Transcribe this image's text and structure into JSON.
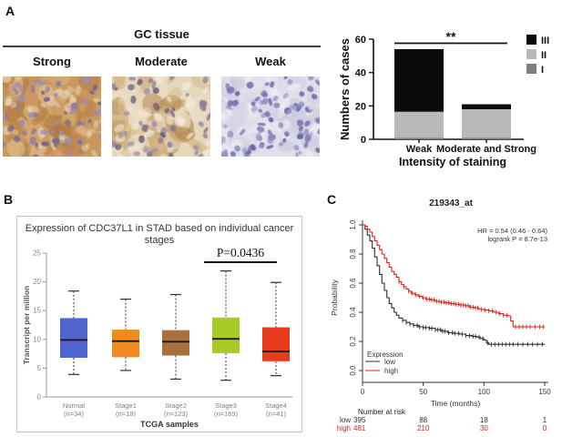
{
  "panel_a": {
    "label": "A",
    "tissue_title": "GC tissue",
    "columns": [
      {
        "label": "Strong",
        "palette": {
          "base": "#c9975f",
          "cyto": [
            "#bc8448",
            "#d8ae77",
            "#b07a42",
            "#e3c492"
          ],
          "nuclei": [
            "#8d7ca4",
            "#77678f",
            "#9d8db3"
          ],
          "light": "#eadbbf",
          "ncount": 60
        }
      },
      {
        "label": "Moderate",
        "palette": {
          "base": "#e5d7ba",
          "cyto": [
            "#d3b98a",
            "#c5a066",
            "#ecdfc8",
            "#b48a52"
          ],
          "nuclei": [
            "#8d7a96",
            "#71607f",
            "#a391aa"
          ],
          "light": "#f4ecdc",
          "ncount": 50
        }
      },
      {
        "label": "Weak",
        "palette": {
          "base": "#e0dee9",
          "cyto": [
            "#d8d6e5",
            "#e9e7f0",
            "#cecbdf"
          ],
          "nuclei": [
            "#8b8bc1",
            "#7676b1",
            "#9f9fd0",
            "#6565a5"
          ],
          "light": "#f1f0f7",
          "ncount": 85
        }
      }
    ]
  },
  "panel_b": {
    "label": "B"
  },
  "panel_c": {
    "label": "C"
  },
  "chart_data": [
    {
      "id": "staining-bar",
      "type": "bar",
      "stacked": true,
      "categories": [
        "Weak",
        "Moderate and Strong"
      ],
      "series": [
        {
          "name": "I",
          "color": "#7f7f7f",
          "values": [
            1,
            1
          ]
        },
        {
          "name": "II",
          "color": "#b9b9b9",
          "values": [
            15.5,
            17
          ]
        },
        {
          "name": "III",
          "color": "#0a0a0a",
          "values": [
            37.5,
            3
          ]
        }
      ],
      "totals": [
        54,
        21
      ],
      "ylabel": "Numbers of cases",
      "xlabel": "Intensity of staining",
      "ylim": [
        0,
        60
      ],
      "yticks": [
        0,
        20,
        40,
        60
      ],
      "legend_order": [
        "III",
        "II",
        "I"
      ],
      "significance": {
        "label": "**"
      }
    },
    {
      "id": "stage-box",
      "type": "box",
      "title": "Expression of CDC37L1 in STAD based on individual cancer stages",
      "title_lines": [
        "Expression of CDC37L1 in STAD based on individual cancer",
        "stages"
      ],
      "xlabel": "TCGA samples",
      "ylabel": "Transcript per million",
      "ylim": [
        0,
        25
      ],
      "yticks": [
        0,
        5,
        10,
        15,
        20,
        25
      ],
      "p_value": "P=0.0436",
      "p_compare": [
        "Stage3",
        "Stage4"
      ],
      "groups": [
        {
          "label": "Normal",
          "n": "(n=34)",
          "color": "#5064cd",
          "low": 3.9,
          "q1": 6.8,
          "median": 9.9,
          "q3": 13.7,
          "high": 18.4
        },
        {
          "label": "Stage1",
          "n": "(n=18)",
          "color": "#ef8b21",
          "low": 4.6,
          "q1": 6.9,
          "median": 9.7,
          "q3": 11.7,
          "high": 17.0
        },
        {
          "label": "Stage2",
          "n": "(n=123)",
          "color": "#a8703d",
          "low": 3.1,
          "q1": 7.2,
          "median": 9.6,
          "q3": 11.6,
          "high": 17.8
        },
        {
          "label": "Stage3",
          "n": "(n=169)",
          "color": "#a9cb27",
          "low": 2.9,
          "q1": 7.6,
          "median": 10.1,
          "q3": 13.8,
          "high": 21.9
        },
        {
          "label": "Stage4",
          "n": "(n=41)",
          "color": "#e73a1e",
          "low": 3.7,
          "q1": 6.2,
          "median": 7.9,
          "q3": 12.1,
          "high": 19.9
        }
      ]
    },
    {
      "id": "km-plot",
      "type": "line",
      "title": "219343_at",
      "xlabel": "Time (months)",
      "ylabel": "Probability",
      "xlim": [
        0,
        150
      ],
      "ylim": [
        0,
        1
      ],
      "xticks": [
        0,
        50,
        100,
        150
      ],
      "yticks": [
        0.0,
        0.2,
        0.4,
        0.6,
        0.8,
        1.0
      ],
      "annotation": [
        "HR = 0.54 (0.46 - 0.64)",
        "logrank P = 8.7e-13"
      ],
      "legend_title": "Expression",
      "series": [
        {
          "name": "low",
          "color": "#2f2f2f",
          "steps": [
            [
              0,
              1.0
            ],
            [
              2,
              0.97
            ],
            [
              4,
              0.93
            ],
            [
              6,
              0.89
            ],
            [
              8,
              0.84
            ],
            [
              10,
              0.78
            ],
            [
              12,
              0.72
            ],
            [
              14,
              0.66
            ],
            [
              16,
              0.6
            ],
            [
              18,
              0.55
            ],
            [
              20,
              0.5
            ],
            [
              22,
              0.46
            ],
            [
              24,
              0.43
            ],
            [
              26,
              0.4
            ],
            [
              28,
              0.38
            ],
            [
              30,
              0.36
            ],
            [
              33,
              0.345
            ],
            [
              36,
              0.33
            ],
            [
              39,
              0.32
            ],
            [
              42,
              0.31
            ],
            [
              46,
              0.3
            ],
            [
              50,
              0.295
            ],
            [
              55,
              0.29
            ],
            [
              60,
              0.28
            ],
            [
              65,
              0.27
            ],
            [
              70,
              0.26
            ],
            [
              75,
              0.255
            ],
            [
              80,
              0.25
            ],
            [
              85,
              0.24
            ],
            [
              90,
              0.235
            ],
            [
              94,
              0.23
            ],
            [
              97,
              0.22
            ],
            [
              100,
              0.21
            ],
            [
              102,
              0.19
            ],
            [
              104,
              0.18
            ],
            [
              150,
              0.18
            ]
          ],
          "censor_times": [
            33,
            36,
            39,
            42,
            45,
            47,
            50,
            52,
            55,
            57,
            60,
            62,
            64,
            66,
            68,
            71,
            74,
            76,
            79,
            82,
            85,
            88,
            91,
            93,
            96,
            99,
            103,
            106,
            109,
            112,
            115,
            118,
            121,
            124,
            128,
            132,
            136,
            140,
            144,
            148
          ]
        },
        {
          "name": "high",
          "color": "#e2231a",
          "steps": [
            [
              0,
              1.0
            ],
            [
              2,
              0.99
            ],
            [
              4,
              0.97
            ],
            [
              6,
              0.95
            ],
            [
              8,
              0.92
            ],
            [
              10,
              0.89
            ],
            [
              12,
              0.86
            ],
            [
              14,
              0.83
            ],
            [
              16,
              0.8
            ],
            [
              18,
              0.77
            ],
            [
              20,
              0.74
            ],
            [
              22,
              0.71
            ],
            [
              24,
              0.68
            ],
            [
              26,
              0.66
            ],
            [
              28,
              0.64
            ],
            [
              30,
              0.61
            ],
            [
              32,
              0.59
            ],
            [
              34,
              0.575
            ],
            [
              36,
              0.56
            ],
            [
              38,
              0.545
            ],
            [
              40,
              0.53
            ],
            [
              43,
              0.52
            ],
            [
              46,
              0.51
            ],
            [
              49,
              0.5
            ],
            [
              52,
              0.49
            ],
            [
              56,
              0.485
            ],
            [
              60,
              0.475
            ],
            [
              64,
              0.47
            ],
            [
              68,
              0.465
            ],
            [
              72,
              0.46
            ],
            [
              76,
              0.455
            ],
            [
              80,
              0.45
            ],
            [
              84,
              0.445
            ],
            [
              88,
              0.435
            ],
            [
              92,
              0.43
            ],
            [
              96,
              0.42
            ],
            [
              100,
              0.415
            ],
            [
              104,
              0.41
            ],
            [
              108,
              0.4
            ],
            [
              112,
              0.39
            ],
            [
              116,
              0.38
            ],
            [
              120,
              0.375
            ],
            [
              122,
              0.34
            ],
            [
              124,
              0.3
            ],
            [
              150,
              0.3
            ]
          ],
          "censor_times": [
            30,
            34,
            38,
            41,
            44,
            47,
            50,
            53,
            55,
            57,
            59,
            61,
            63,
            65,
            67,
            69,
            71,
            73,
            75,
            77,
            79,
            81,
            83,
            85,
            87,
            89,
            91,
            93,
            95,
            98,
            101,
            104,
            107,
            110,
            113,
            116,
            119,
            126,
            129,
            132,
            135,
            138,
            142,
            146,
            149
          ]
        }
      ],
      "risk_table": {
        "header": "Number at risk",
        "times": [
          0,
          50,
          100,
          150
        ],
        "rows": [
          {
            "name": "low",
            "color": "#2f2f2f",
            "values": [
              395,
              88,
              18,
              1
            ]
          },
          {
            "name": "high",
            "color": "#e2231a",
            "values": [
              481,
              210,
              30,
              0
            ]
          }
        ]
      }
    }
  ]
}
